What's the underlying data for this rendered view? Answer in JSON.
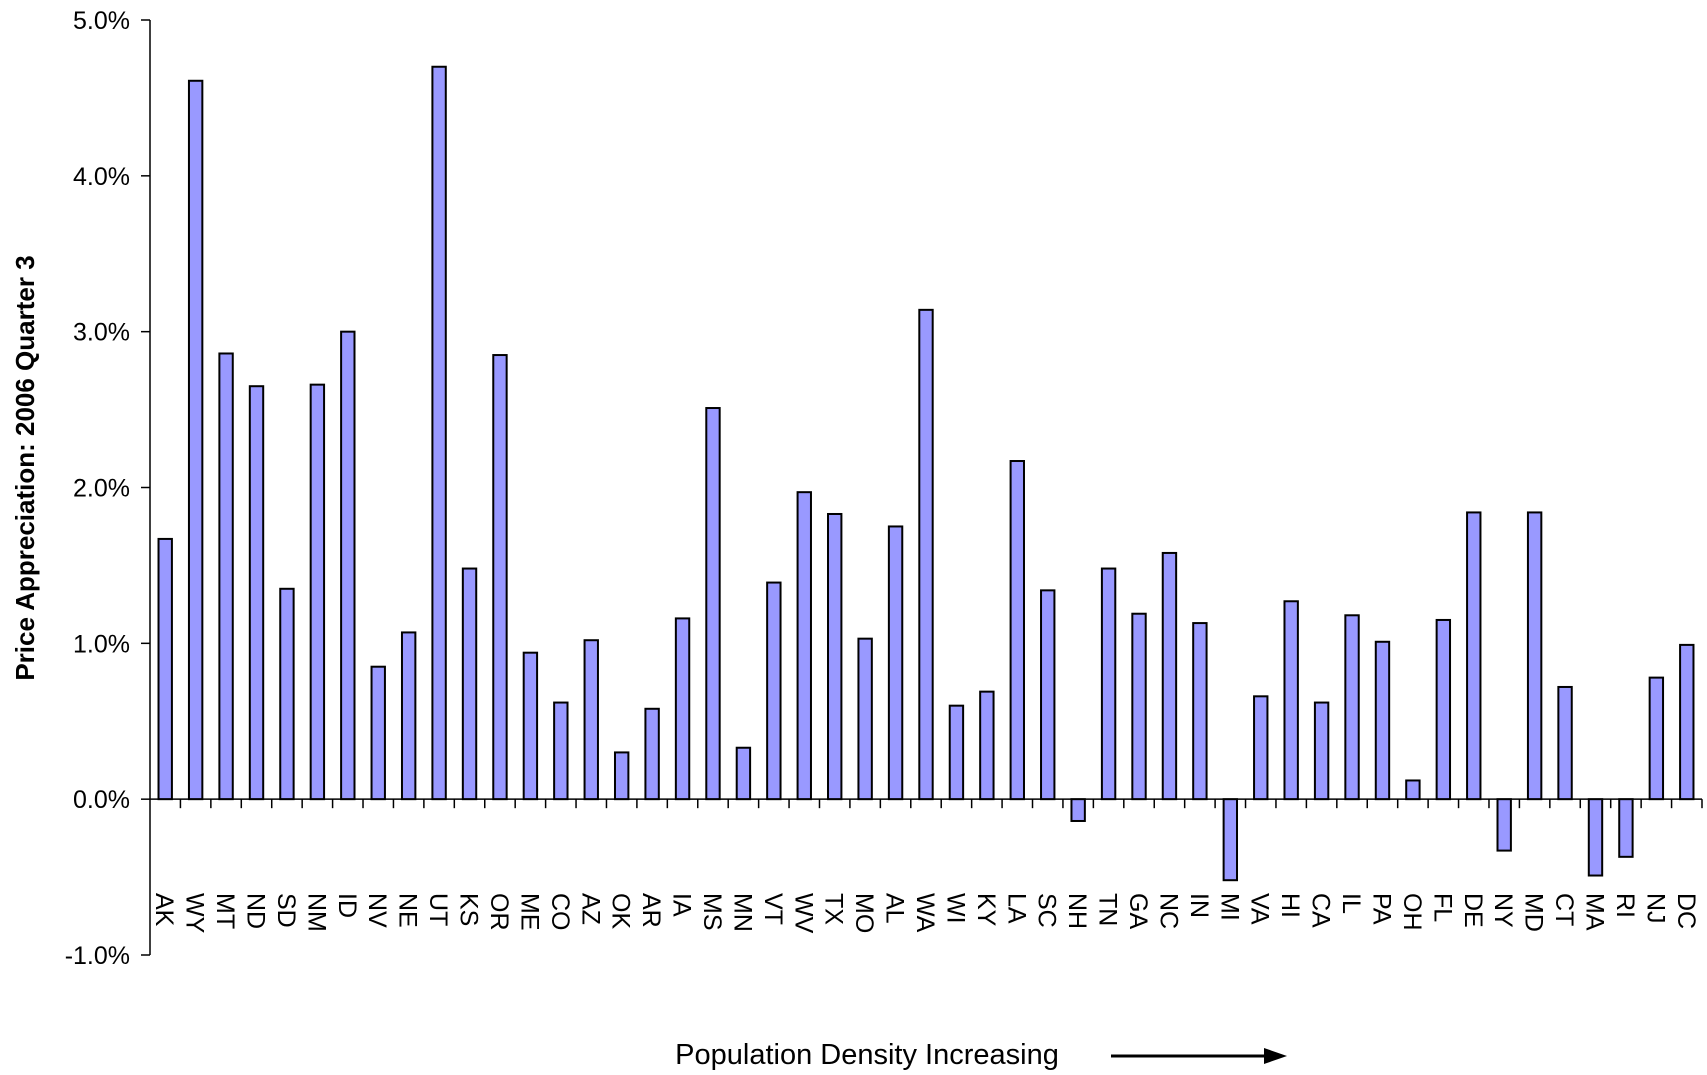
{
  "chart_data": {
    "type": "bar",
    "y_label": "Price Appreciation: 2006 Quarter 3",
    "x_label": "Population Density Increasing",
    "categories": [
      "AK",
      "WY",
      "MT",
      "ND",
      "SD",
      "NM",
      "ID",
      "NV",
      "NE",
      "UT",
      "KS",
      "OR",
      "ME",
      "CO",
      "AZ",
      "OK",
      "AR",
      "IA",
      "MS",
      "MN",
      "VT",
      "WV",
      "TX",
      "MO",
      "AL",
      "WA",
      "WI",
      "KY",
      "LA",
      "SC",
      "NH",
      "TN",
      "GA",
      "NC",
      "IN",
      "MI",
      "VA",
      "HI",
      "CA",
      "IL",
      "PA",
      "OH",
      "FL",
      "DE",
      "NY",
      "MD",
      "CT",
      "MA",
      "RI",
      "NJ",
      "DC"
    ],
    "values": [
      1.67,
      4.61,
      2.86,
      2.65,
      1.35,
      2.66,
      3.0,
      0.85,
      1.07,
      4.7,
      1.48,
      2.85,
      0.94,
      0.62,
      1.02,
      0.3,
      0.58,
      1.16,
      2.51,
      0.33,
      1.39,
      1.97,
      1.83,
      1.03,
      1.75,
      3.14,
      0.6,
      0.69,
      2.17,
      1.34,
      -0.14,
      1.48,
      1.19,
      1.58,
      1.13,
      -0.52,
      0.66,
      1.27,
      0.62,
      1.18,
      1.01,
      0.12,
      1.15,
      1.84,
      -0.33,
      1.84,
      0.72,
      -0.49,
      -0.37,
      0.78,
      0.99
    ],
    "color": "#9999ff",
    "ylim": [
      -1,
      5
    ],
    "yticks": [
      {
        "value": -1,
        "label": "-1.0%"
      },
      {
        "value": 0,
        "label": "0.0%"
      },
      {
        "value": 1,
        "label": "1.0%"
      },
      {
        "value": 2,
        "label": "2.0%"
      },
      {
        "value": 3,
        "label": "3.0%"
      },
      {
        "value": 4,
        "label": "4.0%"
      },
      {
        "value": 5,
        "label": "5.0%"
      }
    ],
    "grid": false
  }
}
